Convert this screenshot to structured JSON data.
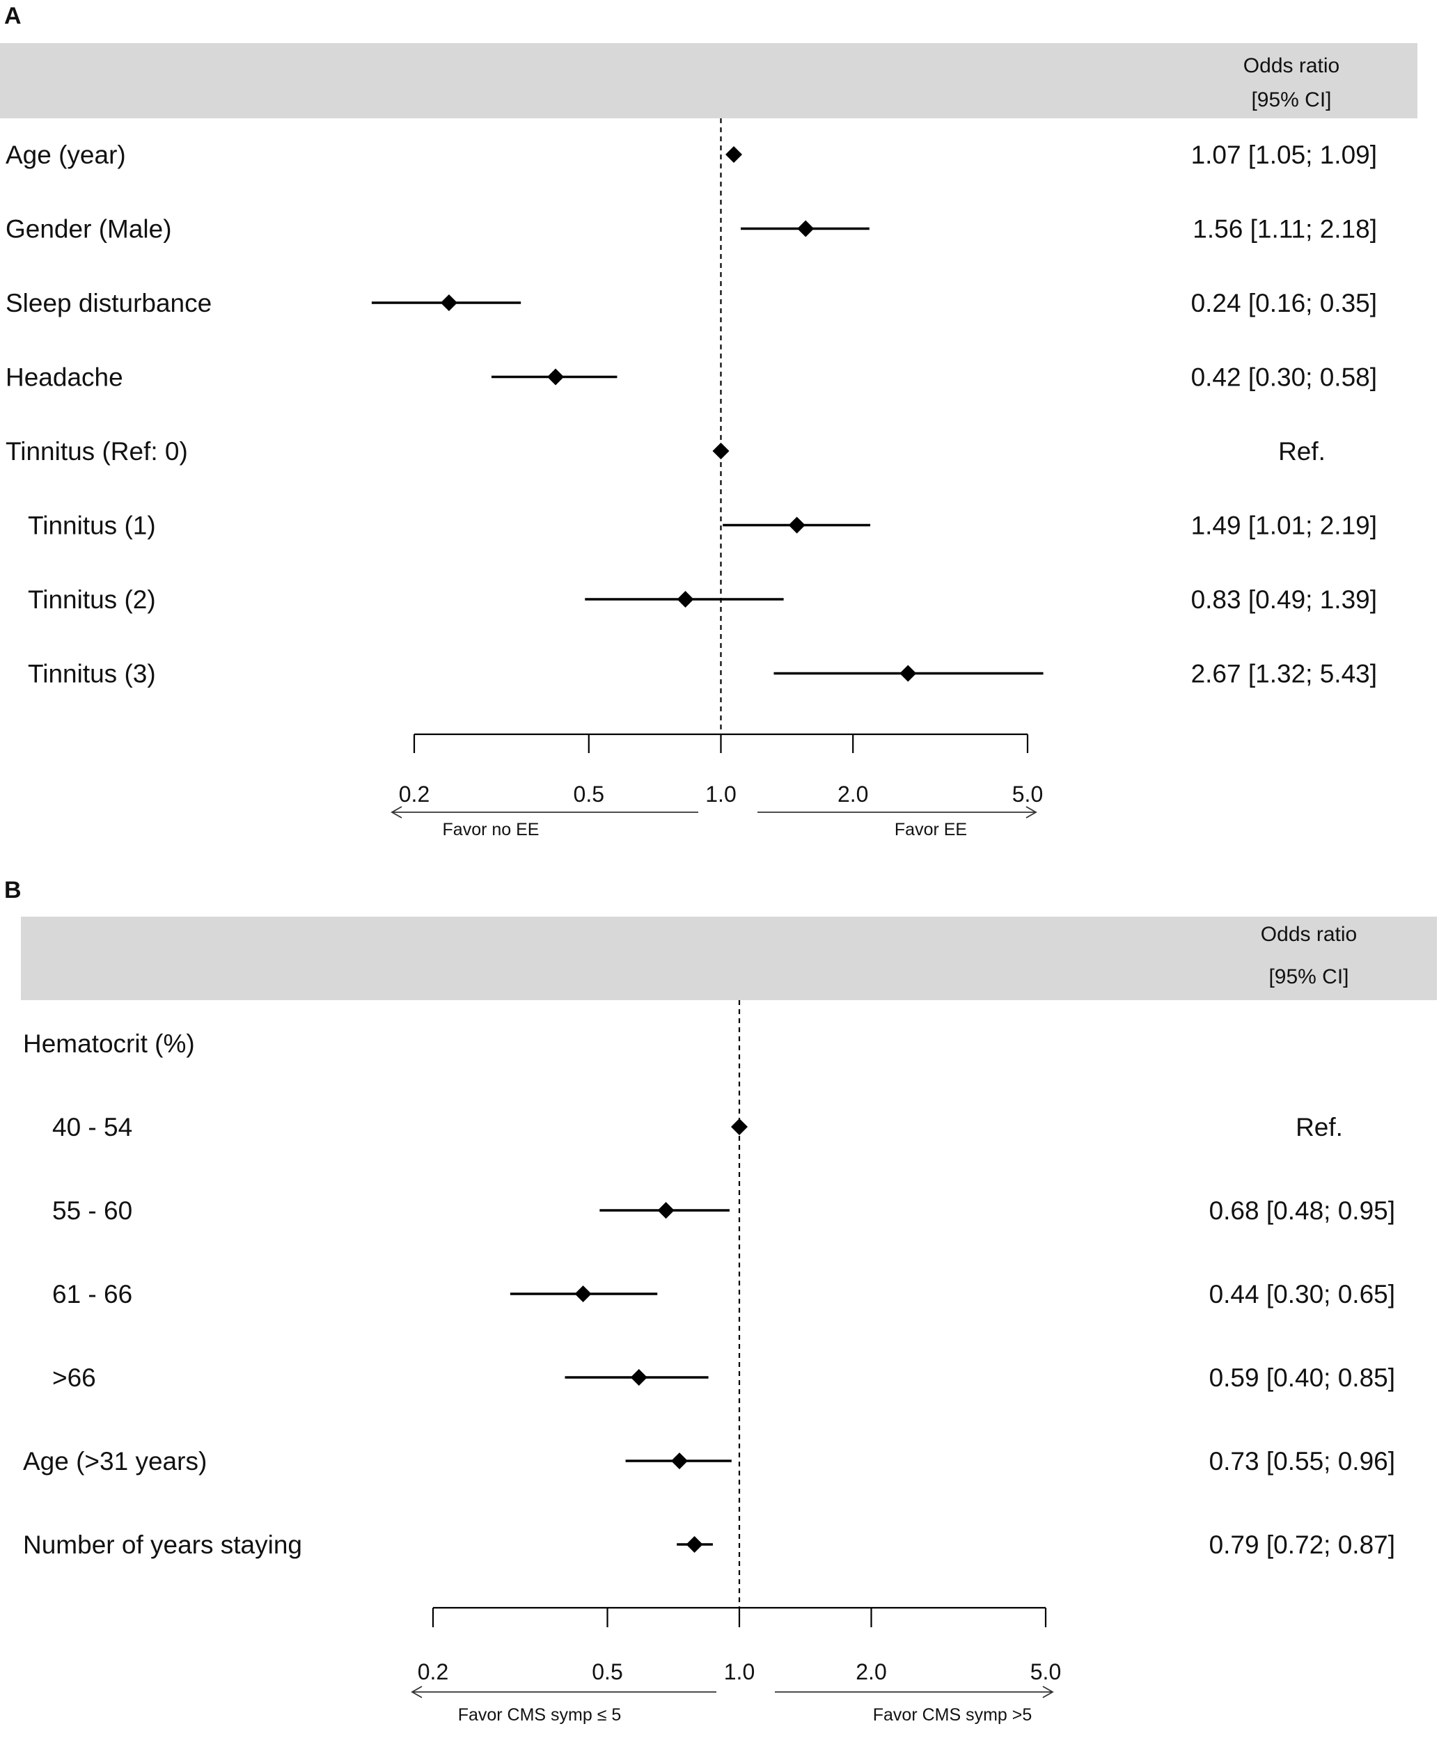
{
  "colors": {
    "header_bg": "#d8d8d8",
    "mark": "#000000",
    "text": "#111111"
  },
  "chart_data": [
    {
      "panel": "A",
      "type": "forest",
      "header": {
        "line1": "Odds ratio",
        "line2": "[95% CI]"
      },
      "x_scale": "log",
      "xlim": [
        0.2,
        5.0
      ],
      "ticks": [
        0.2,
        0.5,
        1.0,
        2.0,
        5.0
      ],
      "tick_labels": [
        "0.2",
        "0.5",
        "1.0",
        "2.0",
        "5.0"
      ],
      "reference_line": 1.0,
      "favor_left": "Favor no EE",
      "favor_right": "Favor EE",
      "rows": [
        {
          "label": "Age (year)",
          "indent": false,
          "or": 1.07,
          "lo": 1.05,
          "hi": 1.09,
          "text": "1.07 [1.05; 1.09]"
        },
        {
          "label": "Gender (Male)",
          "indent": false,
          "or": 1.56,
          "lo": 1.11,
          "hi": 2.18,
          "text": "1.56 [1.11; 2.18]"
        },
        {
          "label": "Sleep disturbance",
          "indent": false,
          "or": 0.24,
          "lo": 0.16,
          "hi": 0.35,
          "text": "0.24 [0.16; 0.35]"
        },
        {
          "label": "Headache",
          "indent": false,
          "or": 0.42,
          "lo": 0.3,
          "hi": 0.58,
          "text": "0.42 [0.30; 0.58]"
        },
        {
          "label": "Tinnitus (Ref: 0)",
          "indent": false,
          "or": 1.0,
          "lo": null,
          "hi": null,
          "text": "Ref."
        },
        {
          "label": "Tinnitus (1)",
          "indent": true,
          "or": 1.49,
          "lo": 1.01,
          "hi": 2.19,
          "text": "1.49 [1.01; 2.19]"
        },
        {
          "label": "Tinnitus (2)",
          "indent": true,
          "or": 0.83,
          "lo": 0.49,
          "hi": 1.39,
          "text": "0.83 [0.49; 1.39]"
        },
        {
          "label": "Tinnitus (3)",
          "indent": true,
          "or": 2.67,
          "lo": 1.32,
          "hi": 5.43,
          "text": "2.67 [1.32; 5.43]"
        }
      ]
    },
    {
      "panel": "B",
      "type": "forest",
      "header": {
        "line1": "Odds ratio",
        "line2": "[95% CI]"
      },
      "x_scale": "log",
      "xlim": [
        0.2,
        5.0
      ],
      "ticks": [
        0.2,
        0.5,
        1.0,
        2.0,
        5.0
      ],
      "tick_labels": [
        "0.2",
        "0.5",
        "1.0",
        "2.0",
        "5.0"
      ],
      "reference_line": 1.0,
      "favor_left": "Favor CMS symp ≤ 5",
      "favor_right": "Favor CMS symp >5",
      "rows": [
        {
          "label": "Hematocrit (%)",
          "indent": false,
          "or": null,
          "lo": null,
          "hi": null,
          "text": ""
        },
        {
          "label": "40 - 54",
          "indent": true,
          "or": 1.0,
          "lo": null,
          "hi": null,
          "text": "Ref."
        },
        {
          "label": "55 - 60",
          "indent": true,
          "or": 0.68,
          "lo": 0.48,
          "hi": 0.95,
          "text": "0.68 [0.48; 0.95]"
        },
        {
          "label": "61 - 66",
          "indent": true,
          "or": 0.44,
          "lo": 0.3,
          "hi": 0.65,
          "text": "0.44 [0.30; 0.65]"
        },
        {
          "label": ">66",
          "indent": true,
          "or": 0.59,
          "lo": 0.4,
          "hi": 0.85,
          "text": "0.59 [0.40; 0.85]"
        },
        {
          "label": "Age (>31 years)",
          "indent": false,
          "or": 0.73,
          "lo": 0.55,
          "hi": 0.96,
          "text": "0.73 [0.55; 0.96]"
        },
        {
          "label": "Number of years staying",
          "indent": false,
          "or": 0.79,
          "lo": 0.72,
          "hi": 0.87,
          "text": "0.79 [0.72; 0.87]"
        }
      ]
    }
  ]
}
